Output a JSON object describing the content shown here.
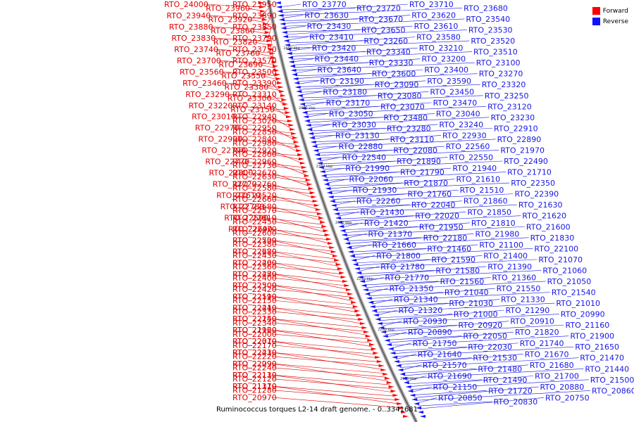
{
  "legend": {
    "forward_label": "Forward",
    "reverse_label": "Reverse",
    "forward_color": "#ff0000",
    "reverse_color": "#1010ff"
  },
  "caption": "Ruminococcus torques L2-14 draft genome. - 0..3341681",
  "backbone_ticks": [
    "2450 kbp",
    "2400 kbp",
    "2350 kbp",
    "2300 kbp",
    "2250 kbp",
    "2200 kbp",
    "2150 kbp"
  ],
  "forward_labels": [
    "RTO_24000",
    "RTO_23960",
    "RTO_23950",
    "RTO_23940",
    "RTO_23920",
    "RTO_23890",
    "RTO_23880",
    "RTO_23860",
    "RTO_23850",
    "RTO_23830",
    "RTO_23820",
    "RTO_23790",
    "RTO_23740",
    "RTO_23760",
    "RTO_23750",
    "RTO_23700",
    "RTO_23690",
    "RTO_23570",
    "RTO_23560",
    "RTO_23550",
    "RTO_23500",
    "RTO_23460",
    "RTO_23380",
    "RTO_23390",
    "RTO_23290",
    "RTO_23300",
    "RTO_23310",
    "RTO_23220",
    "RTO_23150",
    "RTO_23140",
    "RTO_23010",
    "RTO_23020",
    "RTO_22940",
    "RTO_22970",
    "RTO_22850",
    "RTO_22950",
    "RTO_22900",
    "RTO_22980",
    "RTO_22840",
    "RTO_22790",
    "RTO_22860",
    "RTO_22920",
    "RTO_22770",
    "RTO_22730",
    "RTO_22960",
    "RTO_22800",
    "RTO_22630",
    "RTO_22670",
    "RTO_22720",
    "RTO_22580",
    "RTO_22760",
    "RTO_22610",
    "RTO_22660",
    "RTO_22520",
    "RTO_22780",
    "RTO_22570",
    "RTO_22680",
    "RTO_22590",
    "RTO_22450",
    "RTO_22810",
    "RTO_22690",
    "RTO_22600",
    "RTO_22470",
    "RTO_22530",
    "RTO_22380",
    "RTO_22700",
    "RTO_22620",
    "RTO_22430",
    "RTO_22280",
    "RTO_22460",
    "RTO_22360",
    "RTO_22200",
    "RTO_22480",
    "RTO_22400",
    "RTO_22270",
    "RTO_22500",
    "RTO_22420",
    "RTO_22300",
    "RTO_22190",
    "RTO_22150",
    "RTO_22510",
    "RTO_22440",
    "RTO_22330",
    "RTO_22210",
    "RTO_22140",
    "RTO_22340",
    "RTO_22250",
    "RTO_22160",
    "RTO_22000",
    "RTO_21920",
    "RTO_22370",
    "RTO_22170",
    "RTO_22010",
    "RTO_22410",
    "RTO_22220",
    "RTO_22230",
    "RTO_22090",
    "RTO_22240",
    "RTO_22290",
    "RTO_22110",
    "RTO_22120",
    "RTO_22130",
    "RTO_21310",
    "RTO_21280",
    "RTO_21170",
    "RTO_20970"
  ],
  "reverse_labels": [
    "RTO_23770",
    "RTO_23720",
    "RTO_23710",
    "RTO_23680",
    "RTO_23630",
    "RTO_23670",
    "RTO_23620",
    "RTO_23540",
    "RTO_23430",
    "RTO_23650",
    "RTO_23610",
    "RTO_23530",
    "RTO_23410",
    "RTO_23260",
    "RTO_23580",
    "RTO_23520",
    "RTO_23420",
    "RTO_23340",
    "RTO_23210",
    "RTO_23510",
    "RTO_23440",
    "RTO_23330",
    "RTO_23200",
    "RTO_23100",
    "RTO_23640",
    "RTO_23600",
    "RTO_23400",
    "RTO_23270",
    "RTO_23190",
    "RTO_23090",
    "RTO_23590",
    "RTO_23320",
    "RTO_23180",
    "RTO_23080",
    "RTO_23450",
    "RTO_23250",
    "RTO_23170",
    "RTO_23070",
    "RTO_23470",
    "RTO_23120",
    "RTO_23050",
    "RTO_23480",
    "RTO_23040",
    "RTO_23230",
    "RTO_23030",
    "RTO_23280",
    "RTO_23240",
    "RTO_22910",
    "RTO_23130",
    "RTO_23110",
    "RTO_22930",
    "RTO_22890",
    "RTO_22880",
    "RTO_22080",
    "RTO_22560",
    "RTO_21970",
    "RTO_22540",
    "RTO_21890",
    "RTO_22550",
    "RTO_22490",
    "RTO_21990",
    "RTO_21790",
    "RTO_21940",
    "RTO_21710",
    "RTO_22060",
    "RTO_21870",
    "RTO_21610",
    "RTO_22350",
    "RTO_21930",
    "RTO_21760",
    "RTO_21510",
    "RTO_22390",
    "RTO_22260",
    "RTO_22040",
    "RTO_21860",
    "RTO_21630",
    "RTO_21430",
    "RTO_22020",
    "RTO_21850",
    "RTO_21620",
    "RTO_21420",
    "RTO_21950",
    "RTO_21810",
    "RTO_21600",
    "RTO_21370",
    "RTO_22180",
    "RTO_21980",
    "RTO_21830",
    "RTO_21660",
    "RTO_21460",
    "RTO_21100",
    "RTO_22100",
    "RTO_21800",
    "RTO_21590",
    "RTO_21400",
    "RTO_21070",
    "RTO_21780",
    "RTO_21580",
    "RTO_21390",
    "RTO_21060",
    "RTO_21770",
    "RTO_21560",
    "RTO_21360",
    "RTO_21050",
    "RTO_21350",
    "RTO_21040",
    "RTO_21550",
    "RTO_21540",
    "RTO_21340",
    "RTO_21030",
    "RTO_21330",
    "RTO_21010",
    "RTO_21320",
    "RTO_21000",
    "RTO_21290",
    "RTO_20990",
    "RTO_20930",
    "RTO_20920",
    "RTO_20910",
    "RTO_21160",
    "RTO_20890",
    "RTO_22050",
    "RTO_21820",
    "RTO_21900",
    "RTO_21750",
    "RTO_22030",
    "RTO_21740",
    "RTO_21650",
    "RTO_21640",
    "RTO_21530",
    "RTO_21670",
    "RTO_21470",
    "RTO_21570",
    "RTO_21480",
    "RTO_21680",
    "RTO_21440",
    "RTO_21690",
    "RTO_21490",
    "RTO_21700",
    "RTO_21500",
    "RTO_21150",
    "RTO_21720",
    "RTO_20880",
    "RTO_20860",
    "RTO_20850",
    "RTO_20830",
    "RTO_20750"
  ]
}
